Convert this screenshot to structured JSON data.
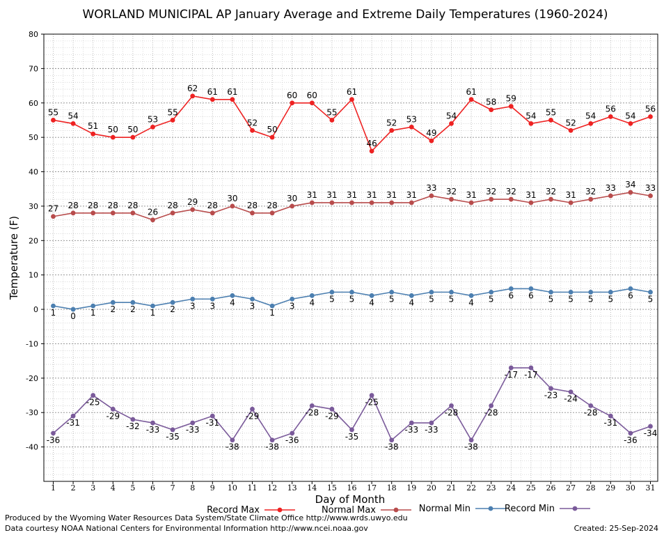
{
  "chart_data": {
    "type": "line",
    "title": "WORLAND MUNICIPAL AP January Average and Extreme Daily Temperatures (1960-2024)",
    "xlabel": "Day of Month",
    "ylabel": "Temperature (F)",
    "ylim": [
      -50,
      80
    ],
    "yticks": [
      -40,
      -30,
      -20,
      -10,
      0,
      10,
      20,
      30,
      40,
      50,
      60,
      70,
      80
    ],
    "x": [
      1,
      2,
      3,
      4,
      5,
      6,
      7,
      8,
      9,
      10,
      11,
      12,
      13,
      14,
      15,
      16,
      17,
      18,
      19,
      20,
      21,
      22,
      23,
      24,
      25,
      26,
      27,
      28,
      29,
      30,
      31
    ],
    "grid": true,
    "legend_position": "bottom",
    "series": [
      {
        "name": "Record Max",
        "color": "#ee2222",
        "label_side": "above",
        "values": [
          55,
          54,
          51,
          50,
          50,
          53,
          55,
          62,
          61,
          61,
          52,
          50,
          60,
          60,
          55,
          61,
          46,
          52,
          53,
          49,
          54,
          61,
          58,
          59,
          54,
          55,
          52,
          54,
          56,
          54,
          56
        ]
      },
      {
        "name": "Normal Max",
        "color": "#b84c4c",
        "label_side": "above",
        "values": [
          27,
          28,
          28,
          28,
          28,
          26,
          28,
          29,
          28,
          30,
          28,
          28,
          30,
          31,
          31,
          31,
          31,
          31,
          31,
          33,
          32,
          31,
          32,
          32,
          31,
          32,
          31,
          32,
          33,
          34,
          33
        ]
      },
      {
        "name": "Normal Min",
        "color": "#4c7fb0",
        "label_side": "below",
        "values": [
          1,
          0,
          1,
          2,
          2,
          1,
          2,
          3,
          3,
          4,
          3,
          1,
          3,
          4,
          5,
          5,
          4,
          5,
          4,
          5,
          5,
          4,
          5,
          6,
          6,
          5,
          5,
          5,
          5,
          6,
          5
        ]
      },
      {
        "name": "Record Min",
        "color": "#7a5a9a",
        "label_side": "below",
        "values": [
          -36,
          -31,
          -25,
          -29,
          -32,
          -33,
          -35,
          -33,
          -31,
          -38,
          -29,
          -38,
          -36,
          -28,
          -29,
          -35,
          -25,
          -38,
          -33,
          -33,
          -28,
          -38,
          -28,
          -17,
          -17,
          -23,
          -24,
          -28,
          -31,
          -36,
          -34
        ]
      }
    ]
  },
  "footer": {
    "line1": "Produced by the Wyoming Water Resources Data System/State Climate Office http://www.wrds.uwyo.edu",
    "line2": "Data courtesy NOAA National Centers for Environmental Information http://www.ncei.noaa.gov",
    "created": "Created:  25-Sep-2024"
  }
}
